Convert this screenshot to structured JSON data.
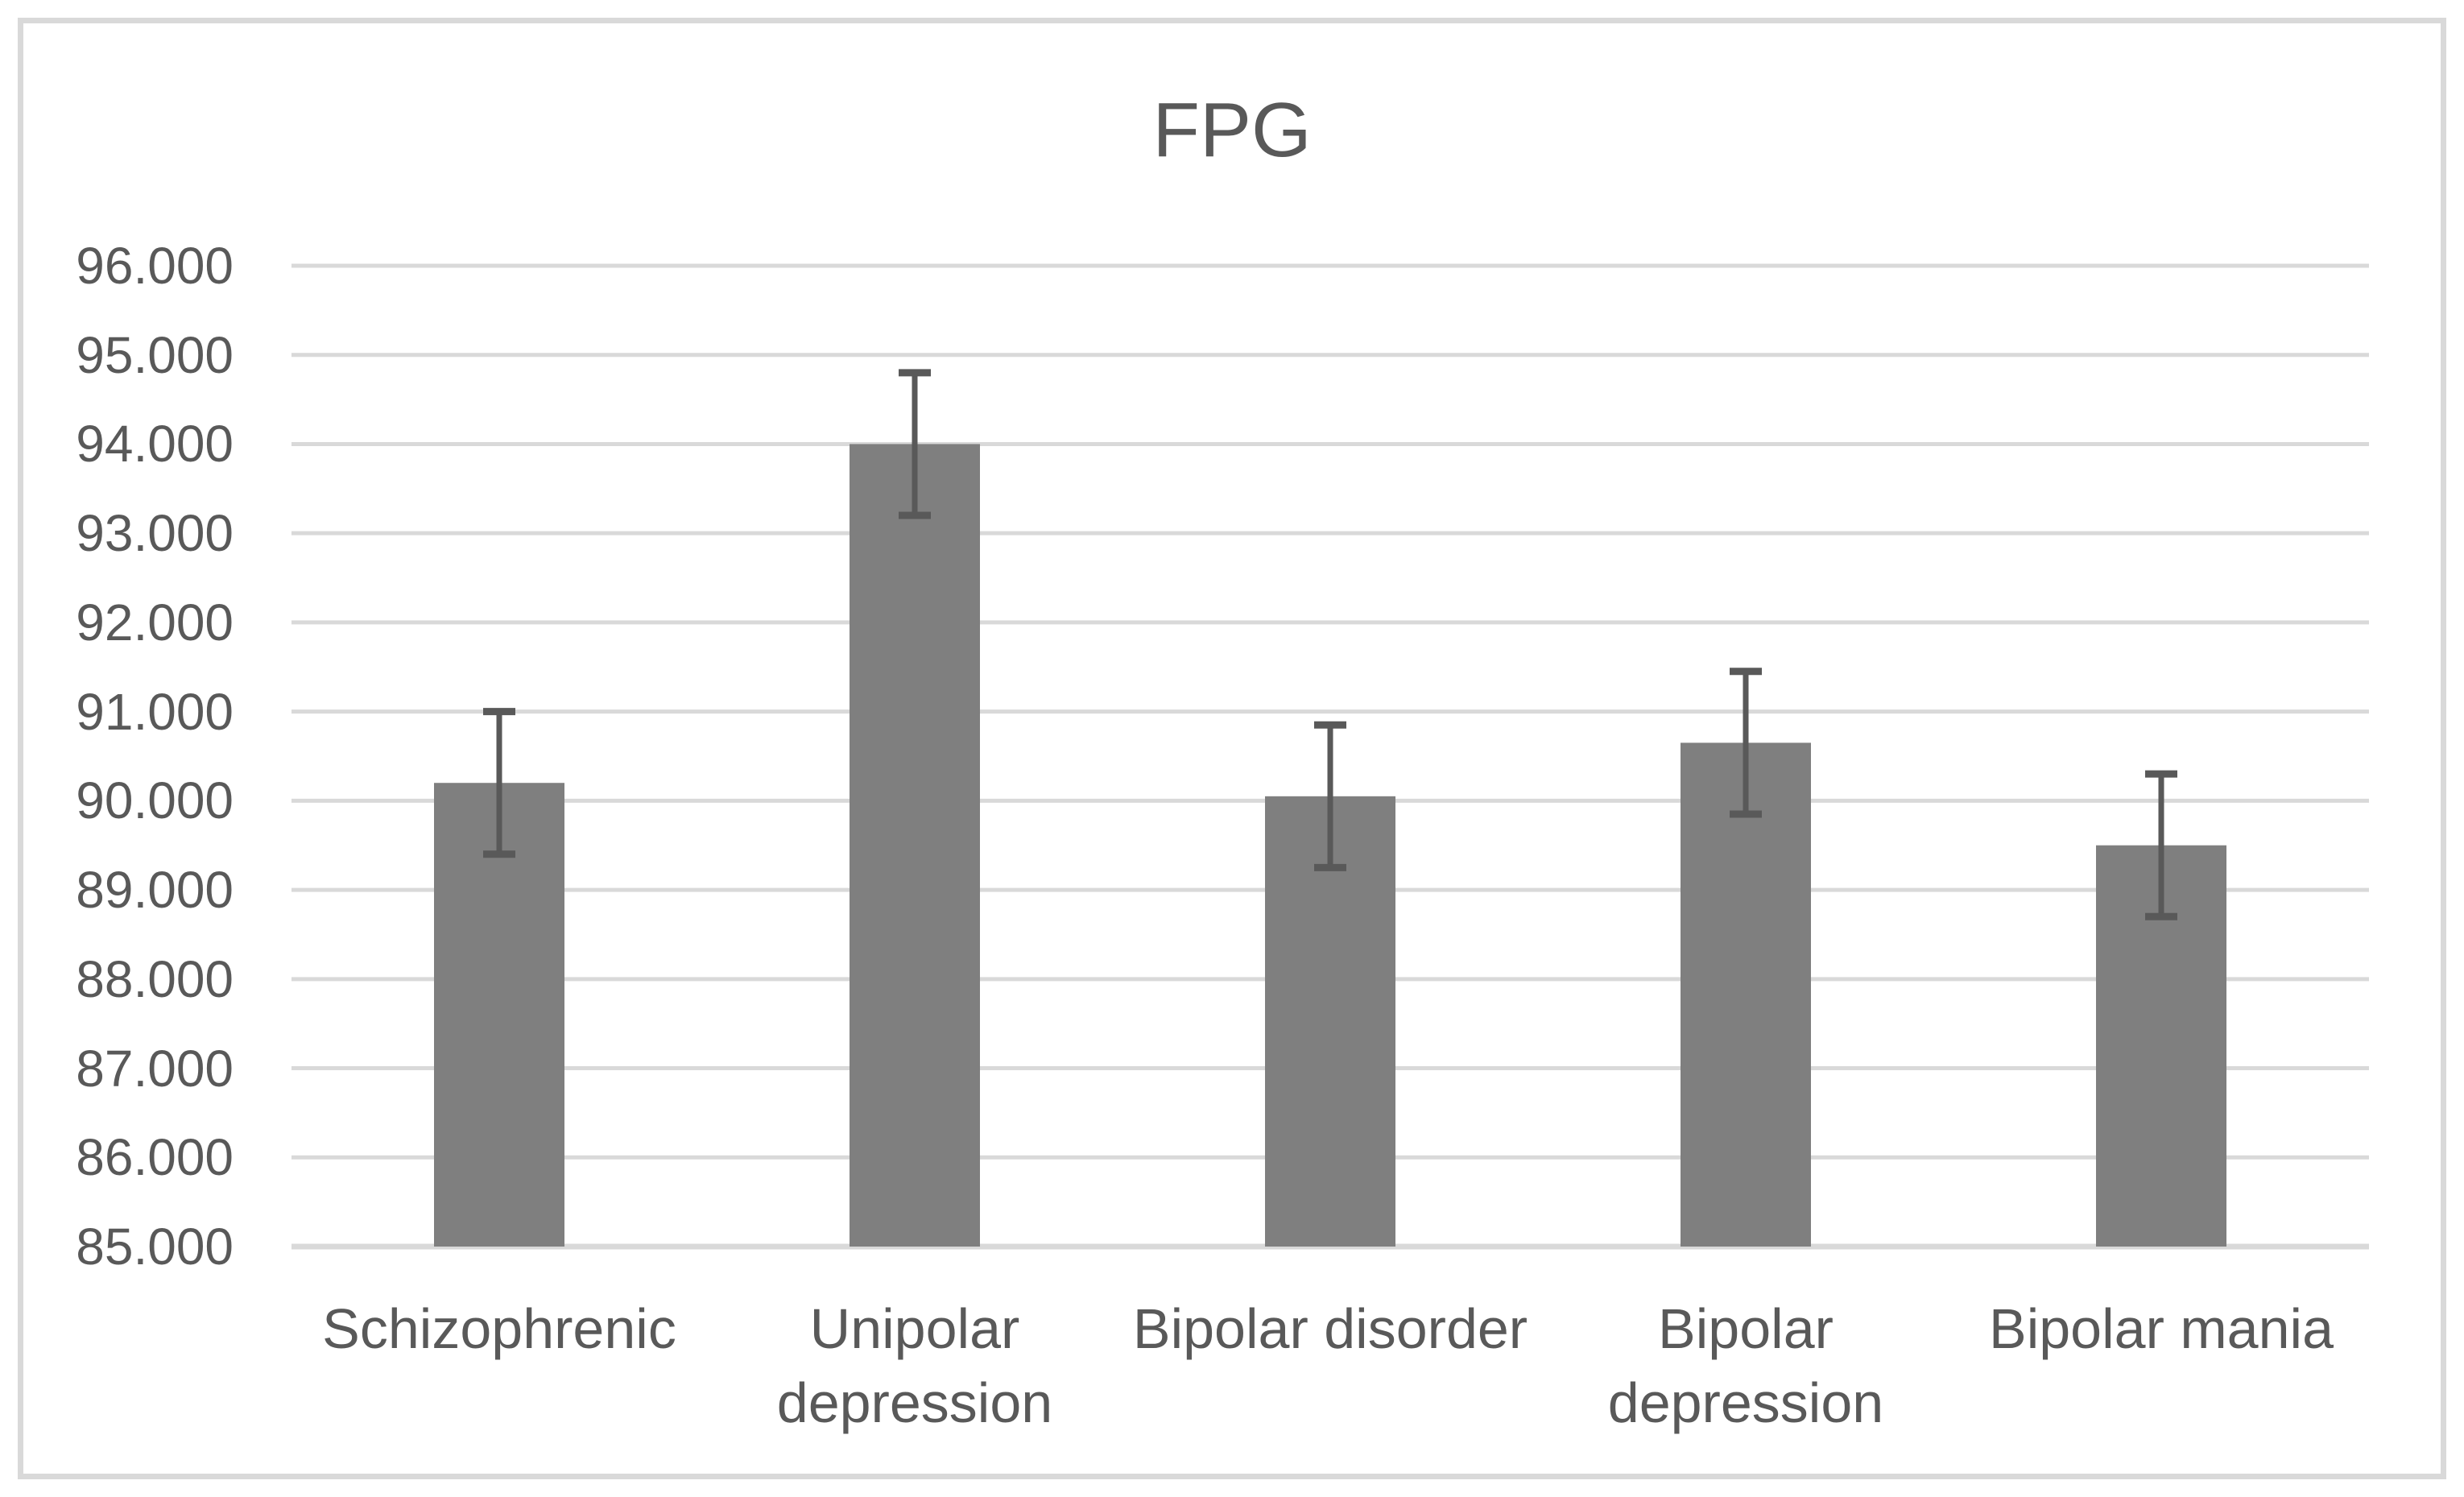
{
  "chart_data": {
    "type": "bar",
    "title": "FPG",
    "categories": [
      "Schizophrenic",
      "Unipolar depression",
      "Bipolar disorder",
      "Bipolar depression",
      "Bipolar mania"
    ],
    "category_label_lines": [
      [
        "Schizophrenic"
      ],
      [
        "Unipolar",
        "depression"
      ],
      [
        "Bipolar disorder"
      ],
      [
        "Bipolar",
        "depression"
      ],
      [
        "Bipolar mania"
      ]
    ],
    "values": [
      90.2,
      94.0,
      90.05,
      90.65,
      89.5
    ],
    "error_bars_plus_minus": [
      0.8,
      0.8,
      0.8,
      0.8,
      0.8
    ],
    "ylim": [
      85,
      96
    ],
    "ytick_step": 1,
    "ytick_labels": [
      "85.000",
      "86.000",
      "87.000",
      "88.000",
      "89.000",
      "90.000",
      "91.000",
      "92.000",
      "93.000",
      "94.000",
      "95.000",
      "96.000"
    ],
    "xlabel": "",
    "ylabel": "",
    "grid": true,
    "legend_position": "none",
    "colors": {
      "bar": "#7f7f7f",
      "error_bar": "#595959",
      "gridline": "#d9d9d9",
      "axis_line": "#d9d9d9",
      "text": "#595959",
      "figure_border": "#d9d9d9",
      "background": "#ffffff"
    }
  }
}
